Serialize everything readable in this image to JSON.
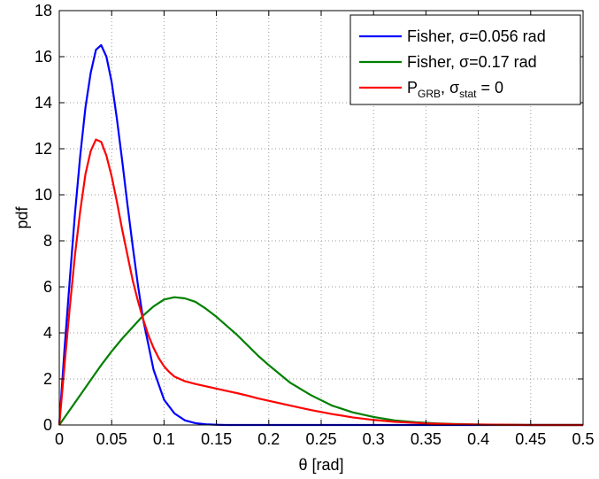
{
  "chart_data": {
    "type": "line",
    "xlabel": "θ [rad]",
    "ylabel": "pdf",
    "xlim": [
      0,
      0.5
    ],
    "ylim": [
      0,
      18
    ],
    "xticks": [
      "0",
      "0.05",
      "0.1",
      "0.15",
      "0.2",
      "0.25",
      "0.3",
      "0.35",
      "0.4",
      "0.45",
      "0.5"
    ],
    "yticks": [
      "0",
      "2",
      "4",
      "6",
      "8",
      "10",
      "12",
      "14",
      "16",
      "18"
    ],
    "grid": true,
    "legend_position": "top-right",
    "series": [
      {
        "legend": {
          "main": "Fisher, σ=0.056 rad"
        },
        "color": "#0000ff",
        "x": [
          0,
          0.005,
          0.01,
          0.015,
          0.02,
          0.025,
          0.03,
          0.035,
          0.04,
          0.045,
          0.05,
          0.055,
          0.06,
          0.065,
          0.07,
          0.075,
          0.08,
          0.09,
          0.1,
          0.11,
          0.12,
          0.13,
          0.14,
          0.15,
          0.16,
          0.18,
          0.2,
          0.25,
          0.3,
          0.35,
          0.4,
          0.45,
          0.5
        ],
        "y": [
          0,
          3.3,
          6.3,
          9.2,
          11.7,
          13.8,
          15.3,
          16.3,
          16.5,
          16.0,
          14.9,
          13.3,
          11.5,
          9.6,
          7.8,
          6.1,
          4.6,
          2.4,
          1.1,
          0.5,
          0.2,
          0.08,
          0.03,
          0.01,
          0,
          0,
          0,
          0,
          0,
          0,
          0,
          0,
          0
        ]
      },
      {
        "legend": {
          "main": "Fisher, σ=0.17 rad"
        },
        "color": "#008000",
        "x": [
          0,
          0.01,
          0.02,
          0.03,
          0.04,
          0.05,
          0.06,
          0.07,
          0.08,
          0.09,
          0.1,
          0.11,
          0.12,
          0.13,
          0.14,
          0.15,
          0.16,
          0.17,
          0.18,
          0.19,
          0.2,
          0.22,
          0.24,
          0.26,
          0.28,
          0.3,
          0.32,
          0.34,
          0.36,
          0.38,
          0.4,
          0.42,
          0.45,
          0.5
        ],
        "y": [
          0,
          0.65,
          1.3,
          1.95,
          2.6,
          3.2,
          3.75,
          4.25,
          4.75,
          5.15,
          5.45,
          5.55,
          5.5,
          5.35,
          5.05,
          4.7,
          4.3,
          3.9,
          3.45,
          3.0,
          2.6,
          1.85,
          1.3,
          0.85,
          0.55,
          0.35,
          0.2,
          0.12,
          0.07,
          0.04,
          0.02,
          0.01,
          0,
          0
        ]
      },
      {
        "legend": {
          "main": "P",
          "sub1": "GRB",
          "mid": ", σ",
          "sub2": "stat",
          "end": " = 0"
        },
        "color": "#ff0000",
        "x": [
          0,
          0.005,
          0.01,
          0.015,
          0.02,
          0.025,
          0.03,
          0.035,
          0.04,
          0.045,
          0.05,
          0.055,
          0.06,
          0.065,
          0.07,
          0.075,
          0.08,
          0.085,
          0.09,
          0.095,
          0.1,
          0.105,
          0.11,
          0.115,
          0.12,
          0.13,
          0.14,
          0.15,
          0.16,
          0.17,
          0.18,
          0.19,
          0.2,
          0.22,
          0.24,
          0.26,
          0.28,
          0.3,
          0.32,
          0.35,
          0.38,
          0.4,
          0.45,
          0.5
        ],
        "y": [
          0,
          2.6,
          5.1,
          7.4,
          9.3,
          10.9,
          11.9,
          12.4,
          12.3,
          11.7,
          10.8,
          9.7,
          8.5,
          7.4,
          6.3,
          5.4,
          4.6,
          3.9,
          3.35,
          2.9,
          2.55,
          2.3,
          2.1,
          2.0,
          1.9,
          1.78,
          1.68,
          1.58,
          1.48,
          1.38,
          1.27,
          1.15,
          1.05,
          0.85,
          0.65,
          0.48,
          0.33,
          0.22,
          0.14,
          0.07,
          0.03,
          0.02,
          0,
          0
        ]
      }
    ]
  }
}
